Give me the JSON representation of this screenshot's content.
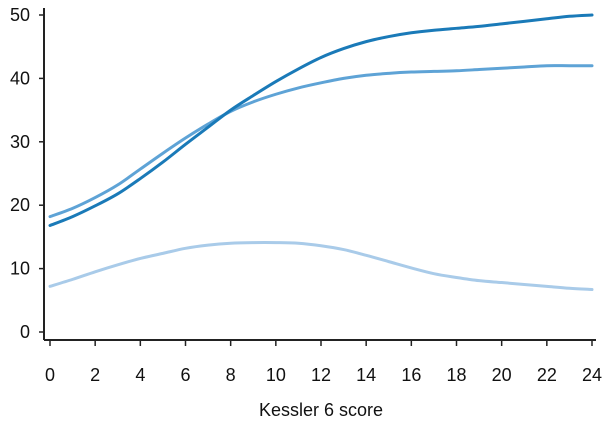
{
  "chart_data": {
    "type": "line",
    "xlabel": "Kessler 6 score",
    "ylabel": "",
    "xlim": [
      0,
      24
    ],
    "ylim": [
      0,
      50
    ],
    "x_ticks": [
      0,
      2,
      4,
      6,
      8,
      10,
      12,
      14,
      16,
      18,
      20,
      22,
      24
    ],
    "y_ticks": [
      0,
      10,
      20,
      30,
      40,
      50
    ],
    "grid": false,
    "x": [
      0,
      1,
      2,
      3,
      4,
      5,
      6,
      7,
      8,
      9,
      10,
      11,
      12,
      13,
      14,
      15,
      16,
      17,
      18,
      19,
      20,
      21,
      22,
      23,
      24
    ],
    "series": [
      {
        "color": "#1a7ab8",
        "values": [
          16.8,
          18.2,
          19.9,
          21.8,
          24.2,
          26.8,
          29.6,
          32.3,
          35.0,
          37.3,
          39.5,
          41.5,
          43.3,
          44.7,
          45.8,
          46.6,
          47.2,
          47.6,
          47.9,
          48.2,
          48.6,
          49.0,
          49.4,
          49.8,
          50.0
        ]
      },
      {
        "color": "#5ea3d6",
        "values": [
          18.2,
          19.5,
          21.2,
          23.2,
          25.7,
          28.2,
          30.6,
          32.8,
          34.8,
          36.3,
          37.5,
          38.5,
          39.3,
          40.0,
          40.5,
          40.8,
          41.0,
          41.1,
          41.2,
          41.4,
          41.6,
          41.8,
          42.0,
          42.0,
          42.0
        ]
      },
      {
        "color": "#a9cbe9",
        "values": [
          7.2,
          8.3,
          9.5,
          10.6,
          11.6,
          12.4,
          13.2,
          13.7,
          14.0,
          14.1,
          14.1,
          14.0,
          13.6,
          13.0,
          12.1,
          11.1,
          10.1,
          9.2,
          8.6,
          8.1,
          7.8,
          7.5,
          7.2,
          6.9,
          6.7
        ]
      }
    ]
  }
}
